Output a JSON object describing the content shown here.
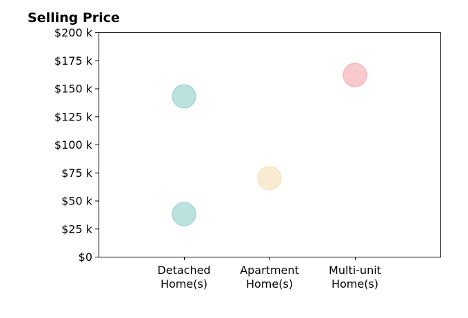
{
  "chart_data": {
    "type": "scatter",
    "title": "Selling Price",
    "xlabel": "",
    "ylabel": "",
    "categories": [
      [
        "Detached",
        "Home(s)"
      ],
      [
        "Apartment",
        "Home(s)"
      ],
      [
        "Multi-unit",
        "Home(s)"
      ]
    ],
    "ylim": [
      0,
      200
    ],
    "yticks": [
      0,
      25,
      50,
      75,
      100,
      125,
      150,
      175,
      200
    ],
    "ytick_labels": [
      "$0",
      "$25 k",
      "$50 k",
      "$75 k",
      "$100 k",
      "$125 k",
      "$150 k",
      "$175 k",
      "$200 k"
    ],
    "grid": false,
    "points": [
      {
        "category": 0,
        "value": 143,
        "color": "#8ecfc9"
      },
      {
        "category": 0,
        "value": 38,
        "color": "#8ecfc9"
      },
      {
        "category": 1,
        "value": 70,
        "color": "#f5deb3"
      },
      {
        "category": 2,
        "value": 162,
        "color": "#f4a6ad"
      }
    ]
  }
}
